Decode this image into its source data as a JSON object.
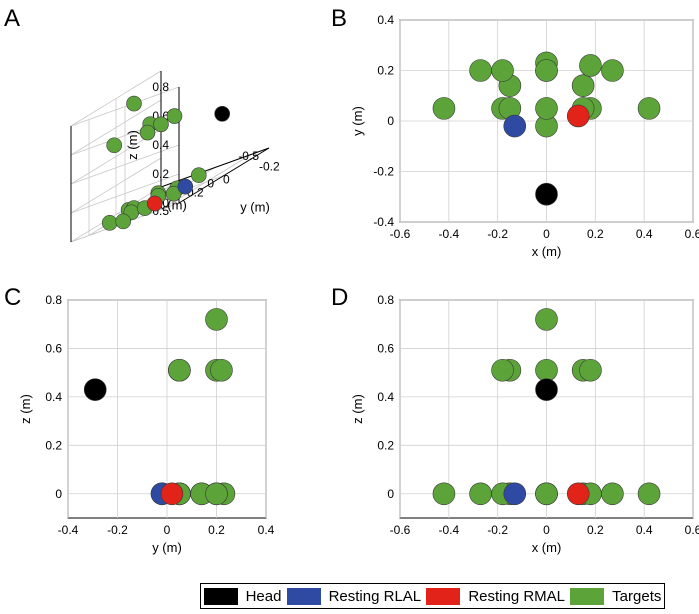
{
  "colors": {
    "head": "#000000",
    "rlal": "#2e4aa3",
    "rmal": "#e2231a",
    "targets": "#5ca43a"
  },
  "legend": [
    {
      "label": "Head",
      "key": "head"
    },
    {
      "label": "Resting RLAL",
      "key": "rlal"
    },
    {
      "label": "Resting RMAL",
      "key": "rmal"
    },
    {
      "label": "Targets",
      "key": "targets"
    }
  ],
  "chart_data": [
    {
      "panel": "A",
      "type": "scatter3d",
      "view": "oblique 3-D",
      "xlabel": "x (m)",
      "ylabel": "y (m)",
      "zlabel": "z (m)",
      "x_ticks": [
        "0.5",
        "0",
        "-0.5"
      ],
      "y_ticks": [
        "-0.2",
        "0",
        "0.2"
      ],
      "z_ticks": [
        "0",
        "0.2",
        "0.4",
        "0.6",
        "0.8"
      ],
      "xlim": [
        -0.5,
        0.5
      ],
      "ylim": [
        -0.3,
        0.3
      ],
      "zlim": [
        0,
        0.8
      ],
      "grid": true
    },
    {
      "panel": "B",
      "type": "scatter",
      "xlabel": "x (m)",
      "ylabel": "y (m)",
      "xlim": [
        -0.6,
        0.6
      ],
      "ylim": [
        -0.4,
        0.4
      ],
      "x_ticks": [
        "-0.6",
        "-0.4",
        "-0.2",
        "0",
        "0.2",
        "0.4",
        "0.6"
      ],
      "y_ticks": [
        "-0.4",
        "-0.2",
        "0",
        "0.2",
        "0.4"
      ],
      "grid": true
    },
    {
      "panel": "C",
      "type": "scatter",
      "xlabel": "y (m)",
      "ylabel": "z (m)",
      "xlim": [
        -0.4,
        0.4
      ],
      "ylim": [
        -0.1,
        0.8
      ],
      "x_ticks": [
        "-0.4",
        "-0.2",
        "0",
        "0.2",
        "0.4"
      ],
      "y_ticks": [
        "0",
        "0.2",
        "0.4",
        "0.6",
        "0.8"
      ],
      "grid": true
    },
    {
      "panel": "D",
      "type": "scatter",
      "xlabel": "x (m)",
      "ylabel": "z (m)",
      "xlim": [
        -0.6,
        0.6
      ],
      "ylim": [
        -0.1,
        0.8
      ],
      "x_ticks": [
        "-0.6",
        "-0.4",
        "-0.2",
        "0",
        "0.2",
        "0.4",
        "0.6"
      ],
      "y_ticks": [
        "0",
        "0.2",
        "0.4",
        "0.6",
        "0.8"
      ],
      "grid": true
    }
  ],
  "points": {
    "head": [
      [
        0,
        -0.29,
        0.43
      ]
    ],
    "rlal": [
      [
        -0.13,
        -0.02,
        0
      ]
    ],
    "rmal": [
      [
        0.13,
        0.02,
        0
      ]
    ],
    "targets": [
      [
        -0.42,
        0.05,
        0
      ],
      [
        -0.27,
        0.2,
        0
      ],
      [
        -0.15,
        0.14,
        0
      ],
      [
        -0.18,
        0.05,
        0
      ],
      [
        0,
        0.23,
        0
      ],
      [
        0,
        0.2,
        0
      ],
      [
        0,
        -0.02,
        0
      ],
      [
        0.15,
        0.14,
        0
      ],
      [
        0.18,
        0.05,
        0
      ],
      [
        0.27,
        0.2,
        0
      ],
      [
        0.42,
        0.05,
        0
      ],
      [
        0,
        0.2,
        0.72
      ],
      [
        -0.15,
        0.05,
        0.51
      ],
      [
        -0.18,
        0.2,
        0.51
      ],
      [
        0,
        0.05,
        0.51
      ],
      [
        0.15,
        0.05,
        0.51
      ],
      [
        0.18,
        0.22,
        0.51
      ]
    ]
  },
  "panel_letters": [
    "A",
    "B",
    "C",
    "D"
  ]
}
